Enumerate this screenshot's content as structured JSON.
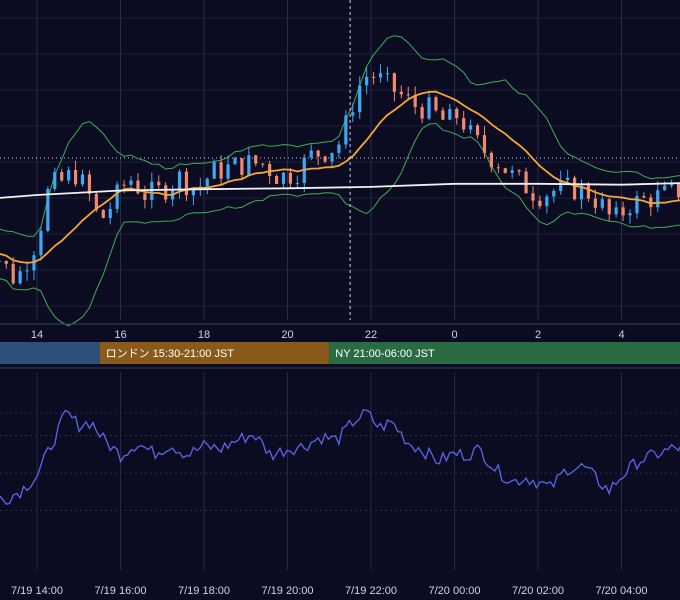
{
  "chart_data": [
    {
      "type": "candlestick",
      "panel": "price",
      "x_ticks": [
        "14",
        "16",
        "18",
        "20",
        "22",
        "0",
        "2",
        "4"
      ],
      "grid": true,
      "sessions": [
        {
          "label": "",
          "start_hour": 12.6,
          "end_hour": 15.5,
          "color": "#2c4f7c"
        },
        {
          "label": "ロンドン 15:30-21:00 JST",
          "start_hour": 15.5,
          "end_hour": 21.0,
          "color": "#8a5a1a"
        },
        {
          "label": "NY 21:00-06:00 JST",
          "start_hour": 21.0,
          "end_hour": 30.0,
          "color": "#2a6b44"
        }
      ],
      "colors": {
        "up": "#3ea8f5",
        "down": "#f08a6e",
        "ma_fast": "#f7a436",
        "ma_slow": "#f2f2f2",
        "bands": "#3cae55"
      },
      "crosshair_hour": 21.5,
      "price_level_ref": 0.735,
      "price_path": [
        [
          12.6,
          -1.0
        ],
        [
          13.0,
          -1.3
        ],
        [
          13.5,
          -1.9
        ],
        [
          14.0,
          -1.0
        ],
        [
          14.3,
          0.2
        ],
        [
          14.6,
          0.3
        ],
        [
          14.9,
          0.5
        ],
        [
          15.2,
          0.1
        ],
        [
          15.5,
          -0.6
        ],
        [
          15.8,
          -0.2
        ],
        [
          16.2,
          0.4
        ],
        [
          16.6,
          0.0
        ],
        [
          17.0,
          0.1
        ],
        [
          17.4,
          0.4
        ],
        [
          17.8,
          0.1
        ],
        [
          18.2,
          0.5
        ],
        [
          18.6,
          0.6
        ],
        [
          19.0,
          0.7
        ],
        [
          19.4,
          0.7
        ],
        [
          19.8,
          0.4
        ],
        [
          20.2,
          0.5
        ],
        [
          20.6,
          0.9
        ],
        [
          21.0,
          1.0
        ],
        [
          21.3,
          1.2
        ],
        [
          21.5,
          1.9
        ],
        [
          21.8,
          2.6
        ],
        [
          22.0,
          2.7
        ],
        [
          22.3,
          2.5
        ],
        [
          22.6,
          2.3
        ],
        [
          23.0,
          2.0
        ],
        [
          23.4,
          1.9
        ],
        [
          23.8,
          1.6
        ],
        [
          24.1,
          1.8
        ],
        [
          24.4,
          1.3
        ],
        [
          24.8,
          0.9
        ],
        [
          25.1,
          0.7
        ],
        [
          25.4,
          0.4
        ],
        [
          25.7,
          0.2
        ],
        [
          26.0,
          0.0
        ],
        [
          26.4,
          0.1
        ],
        [
          26.8,
          0.15
        ],
        [
          27.2,
          0.05
        ],
        [
          27.5,
          -0.2
        ],
        [
          27.8,
          -0.6
        ],
        [
          28.2,
          -0.2
        ],
        [
          28.6,
          -0.1
        ],
        [
          29.0,
          0.0
        ],
        [
          29.4,
          0.1
        ],
        [
          29.8,
          0.15
        ],
        [
          30.0,
          0.2
        ]
      ],
      "ma_slow_path": [
        [
          12.6,
          -0.1
        ],
        [
          14.0,
          0.0
        ],
        [
          16.0,
          0.1
        ],
        [
          18.0,
          0.13
        ],
        [
          20.0,
          0.15
        ],
        [
          22.0,
          0.18
        ],
        [
          24.0,
          0.25
        ],
        [
          26.0,
          0.25
        ],
        [
          28.0,
          0.23
        ],
        [
          30.0,
          0.28
        ]
      ]
    },
    {
      "type": "line",
      "panel": "oscillator",
      "x_ticks": [
        "7/19 14:00",
        "7/19 16:00",
        "7/19 18:00",
        "7/19 20:00",
        "7/19 22:00",
        "7/20 00:00",
        "7/20 02:00",
        "7/20 04:00"
      ],
      "color": "#5a66e8",
      "grid": true,
      "levels": [
        0.9,
        0.75,
        0.5,
        0.25
      ],
      "path": [
        [
          12.6,
          0.42
        ],
        [
          13.2,
          0.32
        ],
        [
          13.6,
          0.38
        ],
        [
          14.0,
          0.48
        ],
        [
          14.4,
          0.72
        ],
        [
          14.7,
          0.9
        ],
        [
          15.0,
          0.82
        ],
        [
          15.3,
          0.84
        ],
        [
          15.6,
          0.72
        ],
        [
          16.0,
          0.62
        ],
        [
          16.4,
          0.7
        ],
        [
          16.8,
          0.63
        ],
        [
          17.2,
          0.69
        ],
        [
          17.6,
          0.62
        ],
        [
          18.0,
          0.68
        ],
        [
          18.4,
          0.66
        ],
        [
          18.8,
          0.72
        ],
        [
          19.2,
          0.76
        ],
        [
          19.6,
          0.62
        ],
        [
          20.0,
          0.66
        ],
        [
          20.4,
          0.68
        ],
        [
          20.8,
          0.74
        ],
        [
          21.2,
          0.72
        ],
        [
          21.6,
          0.85
        ],
        [
          21.9,
          0.9
        ],
        [
          22.2,
          0.8
        ],
        [
          22.5,
          0.84
        ],
        [
          22.9,
          0.7
        ],
        [
          23.2,
          0.66
        ],
        [
          23.6,
          0.58
        ],
        [
          24.0,
          0.63
        ],
        [
          24.3,
          0.62
        ],
        [
          24.6,
          0.66
        ],
        [
          25.0,
          0.52
        ],
        [
          25.4,
          0.44
        ],
        [
          25.7,
          0.47
        ],
        [
          26.0,
          0.44
        ],
        [
          26.3,
          0.4
        ],
        [
          26.7,
          0.53
        ],
        [
          27.1,
          0.54
        ],
        [
          27.4,
          0.46
        ],
        [
          27.7,
          0.38
        ],
        [
          28.0,
          0.48
        ],
        [
          28.4,
          0.58
        ],
        [
          28.8,
          0.62
        ],
        [
          29.2,
          0.66
        ],
        [
          29.6,
          0.68
        ],
        [
          30.0,
          0.67
        ]
      ]
    }
  ]
}
